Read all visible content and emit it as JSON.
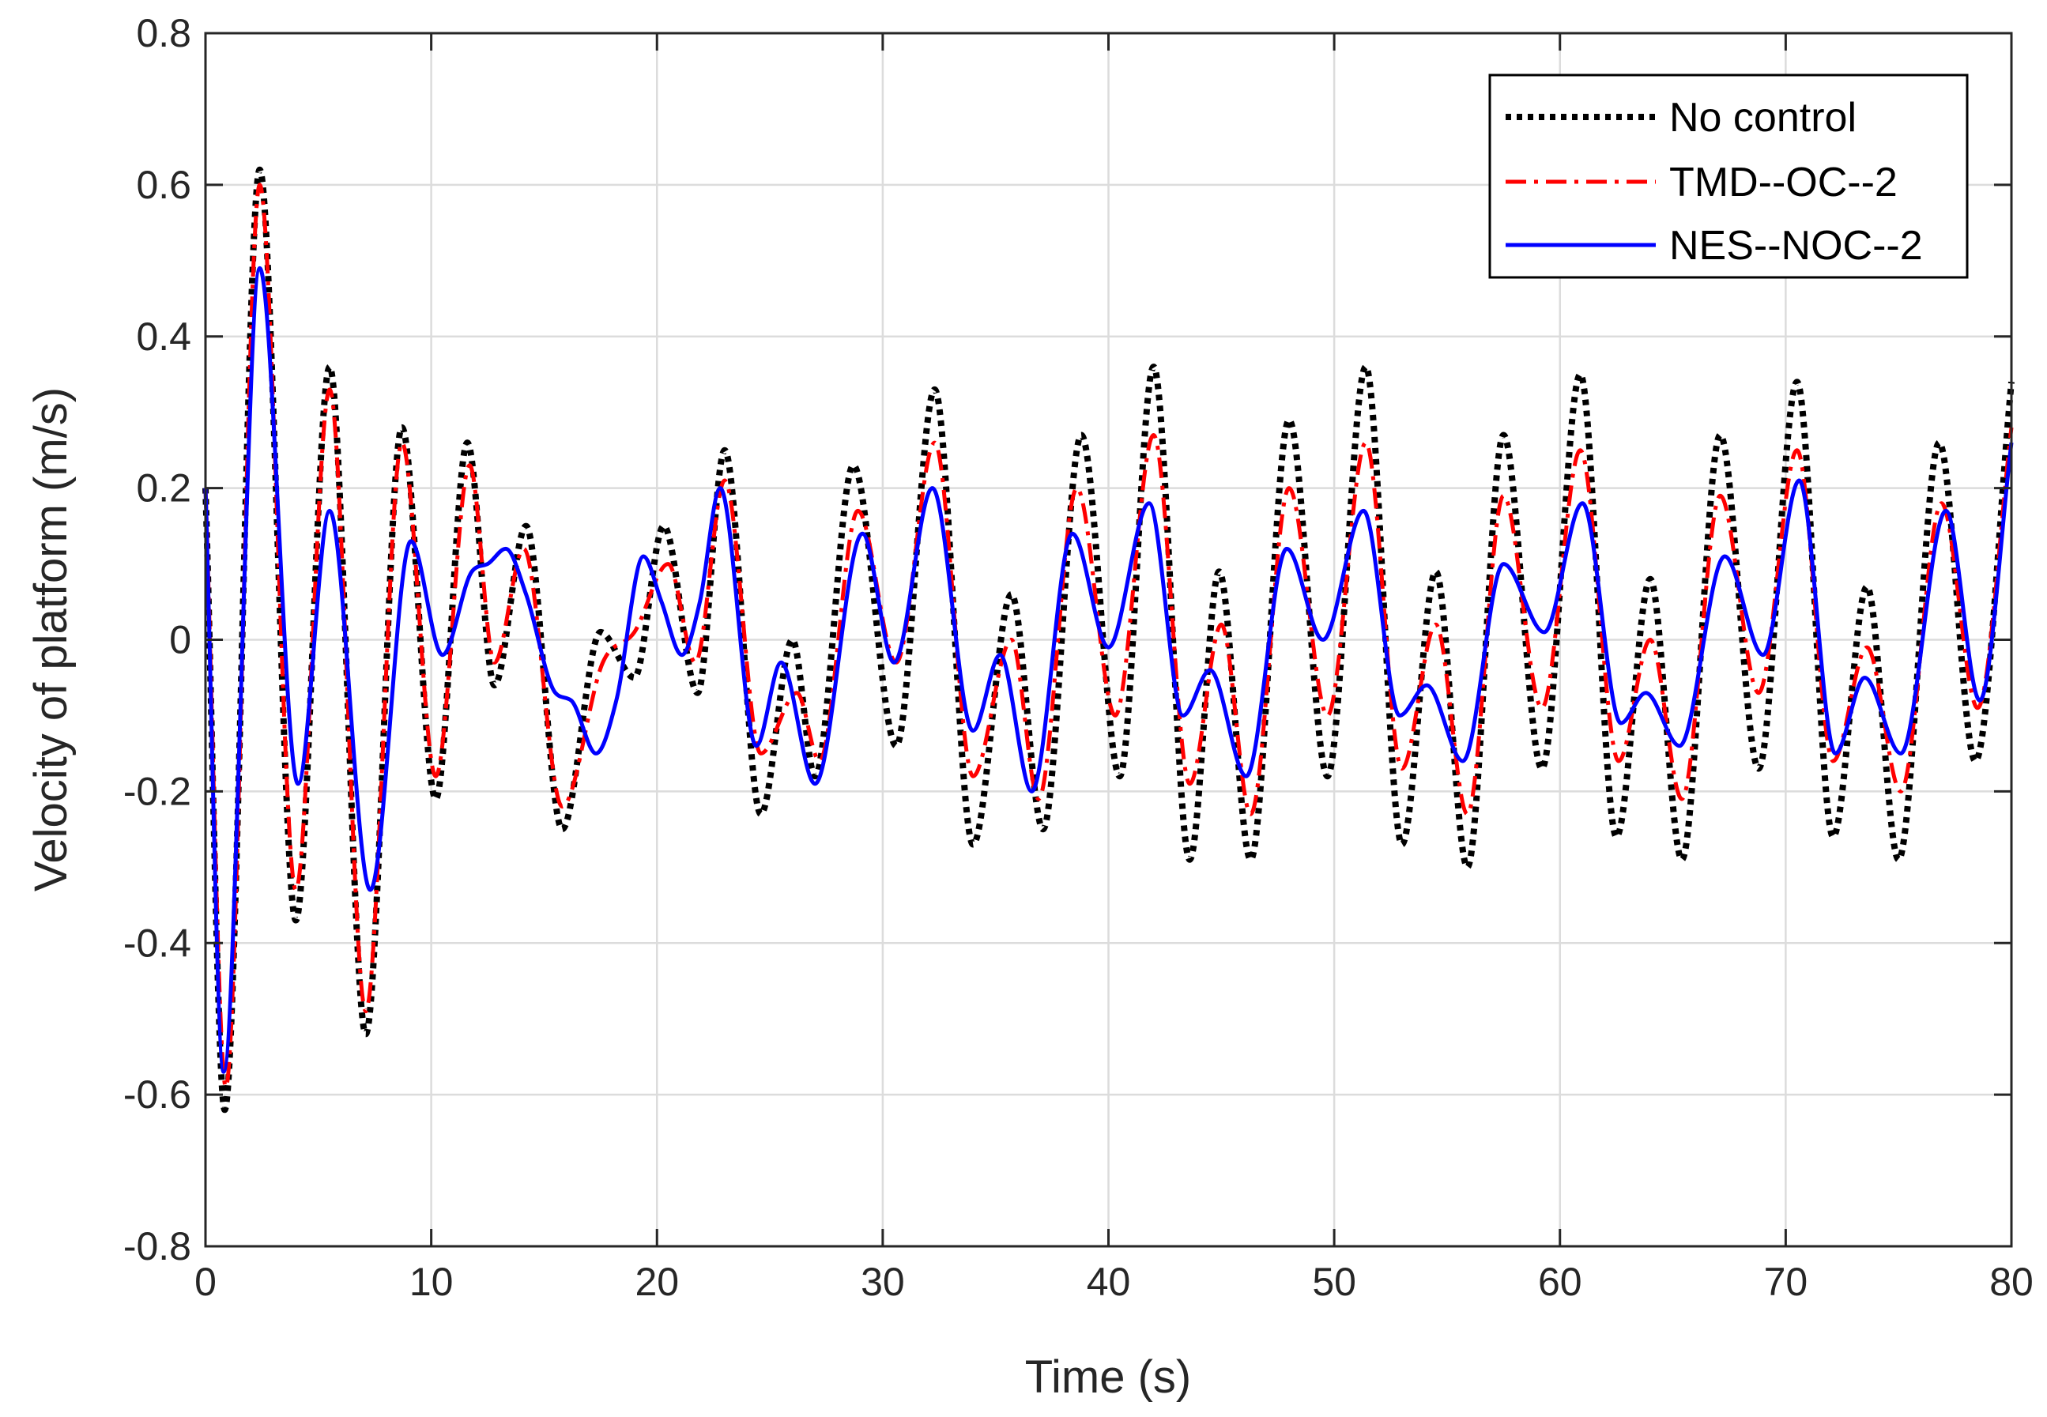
{
  "chart_data": {
    "type": "line",
    "title": "",
    "xlabel": "Time (s)",
    "ylabel": "Velocity of platform (m/s)",
    "xlim": [
      0,
      80
    ],
    "ylim": [
      -0.8,
      0.8
    ],
    "xticks": [
      0,
      10,
      20,
      30,
      40,
      50,
      60,
      70,
      80
    ],
    "yticks": [
      -0.8,
      -0.6,
      -0.4,
      -0.2,
      0,
      0.2,
      0.4,
      0.6,
      0.8
    ],
    "xtick_labels": [
      "0",
      "10",
      "20",
      "30",
      "40",
      "50",
      "60",
      "70",
      "80"
    ],
    "ytick_labels": [
      "-0.8",
      "-0.6",
      "-0.4",
      "-0.2",
      "0",
      "0.2",
      "0.4",
      "0.6",
      "0.8"
    ],
    "grid": true,
    "legend_position": "top-right",
    "series": [
      {
        "name": "No control",
        "color": "#000000",
        "style": "dotted",
        "points": [
          [
            0,
            0.2
          ],
          [
            0.85,
            -0.62
          ],
          [
            2.4,
            0.62
          ],
          [
            4.0,
            -0.37
          ],
          [
            5.5,
            0.36
          ],
          [
            7.1,
            -0.52
          ],
          [
            8.7,
            0.28
          ],
          [
            10.2,
            -0.21
          ],
          [
            11.6,
            0.26
          ],
          [
            12.8,
            -0.06
          ],
          [
            14.2,
            0.15
          ],
          [
            15.8,
            -0.25
          ],
          [
            17.5,
            0.01
          ],
          [
            19.0,
            -0.05
          ],
          [
            20.3,
            0.15
          ],
          [
            21.8,
            -0.07
          ],
          [
            23.0,
            0.25
          ],
          [
            24.6,
            -0.23
          ],
          [
            26.0,
            -0.0
          ],
          [
            27.0,
            -0.18
          ],
          [
            28.7,
            0.23
          ],
          [
            30.6,
            -0.14
          ],
          [
            32.3,
            0.33
          ],
          [
            34.0,
            -0.27
          ],
          [
            35.7,
            0.06
          ],
          [
            37.1,
            -0.25
          ],
          [
            38.8,
            0.27
          ],
          [
            40.5,
            -0.18
          ],
          [
            42.0,
            0.36
          ],
          [
            43.6,
            -0.29
          ],
          [
            44.9,
            0.09
          ],
          [
            46.3,
            -0.29
          ],
          [
            48.0,
            0.29
          ],
          [
            49.7,
            -0.18
          ],
          [
            51.4,
            0.36
          ],
          [
            53.0,
            -0.27
          ],
          [
            54.5,
            0.09
          ],
          [
            55.9,
            -0.3
          ],
          [
            57.5,
            0.27
          ],
          [
            59.2,
            -0.17
          ],
          [
            60.9,
            0.35
          ],
          [
            62.5,
            -0.26
          ],
          [
            64.0,
            0.08
          ],
          [
            65.4,
            -0.29
          ],
          [
            67.1,
            0.27
          ],
          [
            68.8,
            -0.17
          ],
          [
            70.5,
            0.34
          ],
          [
            72.1,
            -0.26
          ],
          [
            73.6,
            0.07
          ],
          [
            75.0,
            -0.29
          ],
          [
            76.8,
            0.26
          ],
          [
            78.4,
            -0.16
          ],
          [
            80.0,
            0.34
          ]
        ]
      },
      {
        "name": "TMD--OC--2",
        "color": "#ff0000",
        "style": "dash-dot",
        "points": [
          [
            0,
            0.2
          ],
          [
            0.9,
            -0.59
          ],
          [
            2.4,
            0.6
          ],
          [
            4.0,
            -0.33
          ],
          [
            5.5,
            0.33
          ],
          [
            7.1,
            -0.49
          ],
          [
            8.7,
            0.26
          ],
          [
            10.2,
            -0.18
          ],
          [
            11.7,
            0.23
          ],
          [
            12.8,
            -0.03
          ],
          [
            14.1,
            0.12
          ],
          [
            15.8,
            -0.22
          ],
          [
            17.6,
            -0.03
          ],
          [
            19.0,
            0.01
          ],
          [
            20.5,
            0.1
          ],
          [
            21.7,
            -0.03
          ],
          [
            23.0,
            0.21
          ],
          [
            24.6,
            -0.15
          ],
          [
            26.2,
            -0.07
          ],
          [
            27.2,
            -0.16
          ],
          [
            28.9,
            0.17
          ],
          [
            30.6,
            -0.03
          ],
          [
            32.3,
            0.26
          ],
          [
            34.0,
            -0.18
          ],
          [
            35.7,
            -0.0
          ],
          [
            36.9,
            -0.21
          ],
          [
            38.6,
            0.2
          ],
          [
            40.3,
            -0.1
          ],
          [
            42.0,
            0.27
          ],
          [
            43.6,
            -0.19
          ],
          [
            45.0,
            0.02
          ],
          [
            46.3,
            -0.23
          ],
          [
            48.0,
            0.2
          ],
          [
            49.7,
            -0.1
          ],
          [
            51.4,
            0.26
          ],
          [
            53.0,
            -0.17
          ],
          [
            54.5,
            0.02
          ],
          [
            55.9,
            -0.23
          ],
          [
            57.5,
            0.19
          ],
          [
            59.2,
            -0.09
          ],
          [
            60.9,
            0.25
          ],
          [
            62.6,
            -0.16
          ],
          [
            64.0,
            -0.0
          ],
          [
            65.4,
            -0.21
          ],
          [
            67.1,
            0.19
          ],
          [
            68.8,
            -0.07
          ],
          [
            70.5,
            0.25
          ],
          [
            72.1,
            -0.16
          ],
          [
            73.6,
            -0.01
          ],
          [
            75.1,
            -0.2
          ],
          [
            76.9,
            0.18
          ],
          [
            78.5,
            -0.09
          ],
          [
            80.0,
            0.28
          ]
        ]
      },
      {
        "name": "NES--NOC--2",
        "color": "#0000ff",
        "style": "solid",
        "points": [
          [
            0,
            0.2
          ],
          [
            0.8,
            -0.57
          ],
          [
            2.4,
            0.49
          ],
          [
            4.1,
            -0.19
          ],
          [
            5.5,
            0.17
          ],
          [
            7.3,
            -0.33
          ],
          [
            9.1,
            0.13
          ],
          [
            10.5,
            -0.02
          ],
          [
            11.8,
            0.09
          ],
          [
            12.5,
            0.1
          ],
          [
            13.3,
            0.12
          ],
          [
            14.2,
            0.06
          ],
          [
            15.5,
            -0.07
          ],
          [
            16.2,
            -0.08
          ],
          [
            17.3,
            -0.15
          ],
          [
            18.2,
            -0.08
          ],
          [
            19.4,
            0.11
          ],
          [
            20.2,
            0.05
          ],
          [
            21.1,
            -0.02
          ],
          [
            21.9,
            0.05
          ],
          [
            22.8,
            0.2
          ],
          [
            24.4,
            -0.14
          ],
          [
            25.5,
            -0.03
          ],
          [
            27.0,
            -0.19
          ],
          [
            29.1,
            0.14
          ],
          [
            30.5,
            -0.03
          ],
          [
            32.2,
            0.2
          ],
          [
            34.0,
            -0.12
          ],
          [
            35.2,
            -0.02
          ],
          [
            36.6,
            -0.2
          ],
          [
            38.4,
            0.14
          ],
          [
            40.0,
            -0.01
          ],
          [
            41.8,
            0.18
          ],
          [
            43.3,
            -0.1
          ],
          [
            44.5,
            -0.04
          ],
          [
            46.1,
            -0.18
          ],
          [
            47.9,
            0.12
          ],
          [
            49.5,
            0.0
          ],
          [
            51.3,
            0.17
          ],
          [
            52.9,
            -0.1
          ],
          [
            54.1,
            -0.06
          ],
          [
            55.7,
            -0.16
          ],
          [
            57.5,
            0.1
          ],
          [
            59.3,
            0.01
          ],
          [
            61.0,
            0.18
          ],
          [
            62.7,
            -0.11
          ],
          [
            63.8,
            -0.07
          ],
          [
            65.3,
            -0.14
          ],
          [
            67.3,
            0.11
          ],
          [
            69.0,
            -0.02
          ],
          [
            70.6,
            0.21
          ],
          [
            72.2,
            -0.15
          ],
          [
            73.5,
            -0.05
          ],
          [
            75.1,
            -0.15
          ],
          [
            77.1,
            0.17
          ],
          [
            78.6,
            -0.08
          ],
          [
            80.0,
            0.26
          ]
        ]
      }
    ]
  }
}
